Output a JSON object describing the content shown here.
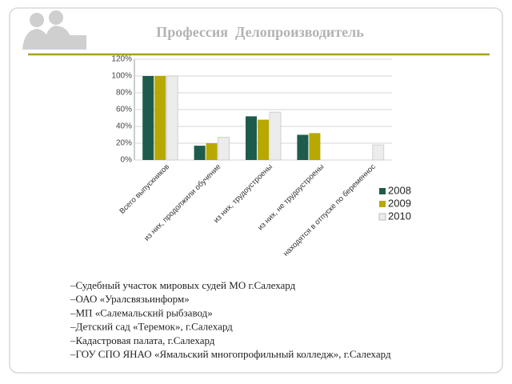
{
  "title": "Профессия  Делопроизводитель",
  "chart_data": {
    "type": "bar",
    "categories": [
      "Всего выпускников",
      "из них, продолжили обучение",
      "из них, трудоустроены",
      "из них, не трудоустроены",
      "находятся в отпуске по беременнос"
    ],
    "series": [
      {
        "name": "2008",
        "color": "#1d5c4c",
        "values": [
          100,
          17,
          52,
          30,
          0
        ]
      },
      {
        "name": "2009",
        "color": "#b8a800",
        "values": [
          100,
          20,
          48,
          32,
          0
        ]
      },
      {
        "name": "2010",
        "color": "#ececec",
        "values": [
          100,
          27,
          57,
          0,
          18
        ]
      }
    ],
    "ylim": [
      0,
      120
    ],
    "yticks": [
      {
        "value": 0,
        "label": "0%"
      },
      {
        "value": 20,
        "label": "20%"
      },
      {
        "value": 40,
        "label": "40%"
      },
      {
        "value": 60,
        "label": "60%"
      },
      {
        "value": 80,
        "label": "80%"
      },
      {
        "value": 100,
        "label": "100%"
      },
      {
        "value": 120,
        "label": "120%"
      }
    ],
    "grid": true
  },
  "list": [
    "–Судебный участок мировых судей МО г.Салехард",
    "–ОАО «Уралсвязьинформ»",
    "–МП «Салемальский рыбзавод»",
    "–Детский сад «Теремок», г.Салехард",
    "–Кадастровая палата, г.Салехард",
    "–ГОУ СПО ЯНАО «Ямальский многопрофильный колледж», г.Салехард"
  ]
}
